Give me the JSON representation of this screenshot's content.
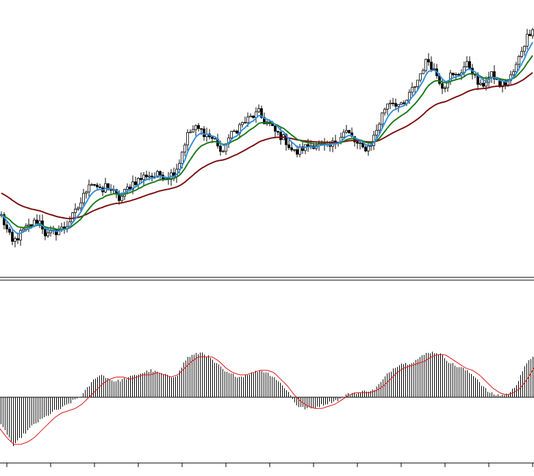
{
  "chart_data": [
    {
      "type": "candlestick",
      "panel": "price",
      "grid": false,
      "legend": "none",
      "colors": {
        "candles": "#000000",
        "ma_fast": "#2f8fe0",
        "ma_mid": "#1a7a1a",
        "ma_slow": "#7a0f0f"
      },
      "ylim": [
        0,
        100
      ],
      "close_path": [
        [
          0,
          22
        ],
        [
          10,
          15
        ],
        [
          18,
          10
        ],
        [
          25,
          12
        ],
        [
          35,
          15
        ],
        [
          45,
          17
        ],
        [
          55,
          19
        ],
        [
          60,
          18
        ],
        [
          65,
          14
        ],
        [
          70,
          13
        ],
        [
          78,
          14
        ],
        [
          85,
          15
        ],
        [
          95,
          16
        ],
        [
          100,
          18
        ],
        [
          110,
          22
        ],
        [
          120,
          27
        ],
        [
          130,
          34
        ],
        [
          140,
          33
        ],
        [
          148,
          29
        ],
        [
          155,
          33
        ],
        [
          165,
          30
        ],
        [
          175,
          27
        ],
        [
          185,
          31
        ],
        [
          195,
          34
        ],
        [
          205,
          35
        ],
        [
          215,
          37
        ],
        [
          225,
          36
        ],
        [
          235,
          37
        ],
        [
          245,
          36
        ],
        [
          255,
          38
        ],
        [
          262,
          42
        ],
        [
          268,
          48
        ],
        [
          275,
          53
        ],
        [
          285,
          55
        ],
        [
          295,
          54
        ],
        [
          305,
          52
        ],
        [
          315,
          50
        ],
        [
          320,
          48
        ],
        [
          325,
          43
        ],
        [
          330,
          50
        ],
        [
          340,
          53
        ],
        [
          350,
          56
        ],
        [
          360,
          58
        ],
        [
          370,
          60
        ],
        [
          378,
          61
        ],
        [
          385,
          58
        ],
        [
          392,
          57
        ],
        [
          400,
          54
        ],
        [
          410,
          52
        ],
        [
          418,
          50
        ],
        [
          425,
          47
        ],
        [
          432,
          45
        ],
        [
          440,
          47
        ],
        [
          450,
          48
        ],
        [
          460,
          49
        ],
        [
          470,
          48
        ],
        [
          480,
          47
        ],
        [
          490,
          50
        ],
        [
          500,
          53
        ],
        [
          505,
          54
        ],
        [
          512,
          52
        ],
        [
          520,
          49
        ],
        [
          530,
          47
        ],
        [
          540,
          48
        ],
        [
          548,
          53
        ],
        [
          555,
          58
        ],
        [
          560,
          62
        ],
        [
          568,
          66
        ],
        [
          578,
          65
        ],
        [
          588,
          63
        ],
        [
          600,
          69
        ],
        [
          610,
          74
        ],
        [
          618,
          79
        ],
        [
          625,
          82
        ],
        [
          632,
          79
        ],
        [
          640,
          75
        ],
        [
          648,
          71
        ],
        [
          656,
          76
        ],
        [
          664,
          75
        ],
        [
          672,
          77
        ],
        [
          680,
          80
        ],
        [
          688,
          79
        ],
        [
          695,
          74
        ],
        [
          702,
          71
        ],
        [
          710,
          74
        ],
        [
          720,
          76
        ],
        [
          730,
          72
        ],
        [
          740,
          73
        ],
        [
          748,
          76
        ],
        [
          755,
          80
        ],
        [
          762,
          86
        ],
        [
          770,
          91
        ],
        [
          780,
          96
        ]
      ]
    },
    {
      "type": "bar+line",
      "panel": "oscillator",
      "grid": false,
      "legend": "none",
      "colors": {
        "bars": "#000000",
        "signal": "#e01010"
      },
      "ylim": [
        -30,
        25
      ],
      "osc_path": [
        [
          0,
          -12
        ],
        [
          10,
          -16
        ],
        [
          20,
          -22
        ],
        [
          30,
          -18
        ],
        [
          40,
          -15
        ],
        [
          50,
          -12
        ],
        [
          60,
          -10
        ],
        [
          70,
          -8
        ],
        [
          80,
          -6
        ],
        [
          90,
          -5
        ],
        [
          100,
          -3
        ],
        [
          110,
          -1
        ],
        [
          120,
          1
        ],
        [
          130,
          5
        ],
        [
          140,
          9
        ],
        [
          150,
          10
        ],
        [
          160,
          8
        ],
        [
          170,
          7
        ],
        [
          180,
          8
        ],
        [
          190,
          9
        ],
        [
          200,
          10
        ],
        [
          210,
          11
        ],
        [
          220,
          12
        ],
        [
          230,
          11
        ],
        [
          240,
          10
        ],
        [
          250,
          9
        ],
        [
          260,
          10
        ],
        [
          268,
          15
        ],
        [
          275,
          18
        ],
        [
          285,
          19
        ],
        [
          295,
          20
        ],
        [
          305,
          18
        ],
        [
          315,
          15
        ],
        [
          320,
          14
        ],
        [
          330,
          11
        ],
        [
          340,
          10
        ],
        [
          350,
          9
        ],
        [
          360,
          10
        ],
        [
          370,
          11
        ],
        [
          380,
          12
        ],
        [
          390,
          11
        ],
        [
          400,
          9
        ],
        [
          410,
          6
        ],
        [
          420,
          3
        ],
        [
          428,
          -1
        ],
        [
          435,
          -4
        ],
        [
          445,
          -5
        ],
        [
          455,
          -5
        ],
        [
          465,
          -4
        ],
        [
          475,
          -3
        ],
        [
          485,
          -2
        ],
        [
          495,
          -1
        ],
        [
          505,
          1
        ],
        [
          515,
          2
        ],
        [
          525,
          2
        ],
        [
          535,
          3
        ],
        [
          545,
          3
        ],
        [
          555,
          6
        ],
        [
          565,
          10
        ],
        [
          575,
          13
        ],
        [
          585,
          15
        ],
        [
          595,
          15
        ],
        [
          605,
          16
        ],
        [
          615,
          18
        ],
        [
          625,
          20
        ],
        [
          635,
          20
        ],
        [
          645,
          19
        ],
        [
          655,
          16
        ],
        [
          665,
          14
        ],
        [
          675,
          13
        ],
        [
          685,
          11
        ],
        [
          695,
          9
        ],
        [
          705,
          5
        ],
        [
          715,
          2
        ],
        [
          725,
          1
        ],
        [
          735,
          1
        ],
        [
          745,
          2
        ],
        [
          755,
          6
        ],
        [
          762,
          11
        ],
        [
          770,
          15
        ],
        [
          780,
          19
        ]
      ],
      "signal_path": [
        [
          0,
          -14
        ],
        [
          10,
          -18
        ],
        [
          20,
          -21
        ],
        [
          30,
          -21
        ],
        [
          40,
          -20
        ],
        [
          50,
          -18
        ],
        [
          60,
          -15
        ],
        [
          70,
          -12
        ],
        [
          80,
          -9
        ],
        [
          90,
          -7
        ],
        [
          100,
          -6
        ],
        [
          110,
          -5
        ],
        [
          120,
          -3
        ],
        [
          130,
          0
        ],
        [
          140,
          3
        ],
        [
          150,
          6
        ],
        [
          160,
          8
        ],
        [
          170,
          9
        ],
        [
          180,
          9
        ],
        [
          190,
          8
        ],
        [
          200,
          9
        ],
        [
          210,
          10
        ],
        [
          220,
          10
        ],
        [
          230,
          11
        ],
        [
          240,
          10
        ],
        [
          250,
          9
        ],
        [
          260,
          10
        ],
        [
          270,
          13
        ],
        [
          280,
          16
        ],
        [
          290,
          18
        ],
        [
          300,
          18
        ],
        [
          310,
          18
        ],
        [
          320,
          16
        ],
        [
          330,
          13
        ],
        [
          340,
          11
        ],
        [
          350,
          10
        ],
        [
          360,
          10
        ],
        [
          370,
          11
        ],
        [
          380,
          12
        ],
        [
          390,
          12
        ],
        [
          400,
          11
        ],
        [
          410,
          8
        ],
        [
          420,
          5
        ],
        [
          430,
          1
        ],
        [
          440,
          -2
        ],
        [
          450,
          -4
        ],
        [
          460,
          -5
        ],
        [
          470,
          -5
        ],
        [
          480,
          -4
        ],
        [
          490,
          -3
        ],
        [
          500,
          -1
        ],
        [
          510,
          1
        ],
        [
          520,
          2
        ],
        [
          530,
          2
        ],
        [
          540,
          2
        ],
        [
          550,
          3
        ],
        [
          560,
          5
        ],
        [
          570,
          8
        ],
        [
          580,
          11
        ],
        [
          590,
          13
        ],
        [
          600,
          14
        ],
        [
          610,
          15
        ],
        [
          620,
          16
        ],
        [
          630,
          18
        ],
        [
          640,
          19
        ],
        [
          650,
          19
        ],
        [
          660,
          17
        ],
        [
          670,
          15
        ],
        [
          680,
          13
        ],
        [
          690,
          12
        ],
        [
          700,
          10
        ],
        [
          710,
          7
        ],
        [
          720,
          4
        ],
        [
          730,
          2
        ],
        [
          740,
          1
        ],
        [
          750,
          2
        ],
        [
          760,
          4
        ],
        [
          770,
          8
        ],
        [
          780,
          13
        ]
      ]
    }
  ]
}
